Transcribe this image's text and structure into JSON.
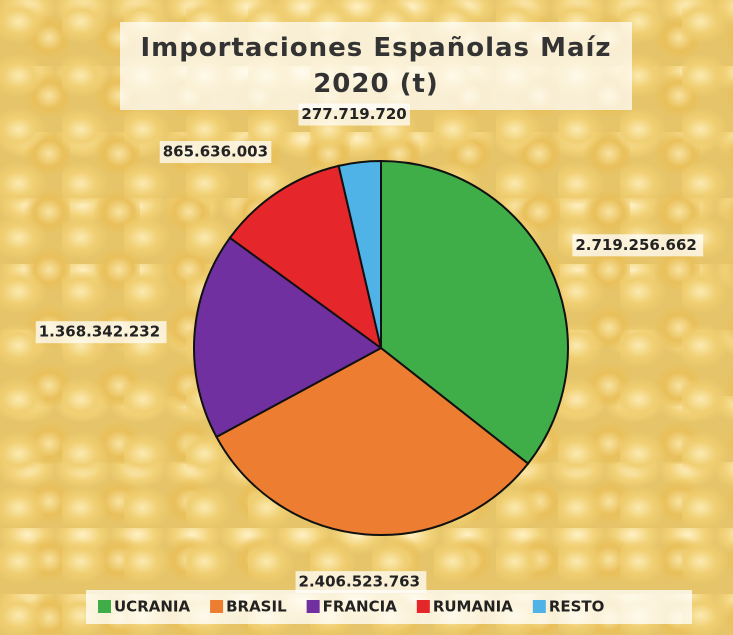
{
  "chart_data": {
    "type": "pie",
    "title": "Importaciones Españolas Maíz 2020 (t)",
    "categories": [
      "UCRANIA",
      "BRASIL",
      "FRANCIA",
      "RUMANIA",
      "RESTO"
    ],
    "values": [
      2719256662,
      2406523763,
      1368342232,
      865636003,
      277719720
    ],
    "value_labels": [
      "2.719.256.662",
      "2.406.523.763",
      "1.368.342.232",
      "865.636.003",
      "277.719.720"
    ],
    "colors": [
      "#3fae49",
      "#ed7d31",
      "#7030a0",
      "#e5262a",
      "#4fb3e8"
    ],
    "legend": "bottom"
  }
}
